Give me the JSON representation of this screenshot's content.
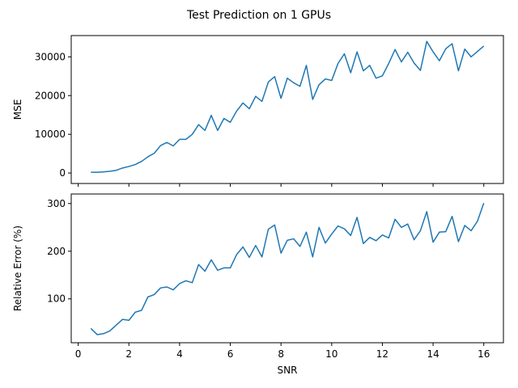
{
  "title": "Test Prediction on 1 GPUs",
  "chart_data": [
    {
      "type": "line",
      "ylabel": "MSE",
      "color": "#1f77b4",
      "xticklabels": false,
      "x": [
        0.5,
        0.75,
        1,
        1.25,
        1.5,
        1.75,
        2,
        2.25,
        2.5,
        2.75,
        3,
        3.25,
        3.5,
        3.75,
        4,
        4.25,
        4.5,
        4.75,
        5,
        5.25,
        5.5,
        5.75,
        6,
        6.25,
        6.5,
        6.75,
        7,
        7.25,
        7.5,
        7.75,
        8,
        8.25,
        8.5,
        8.75,
        9,
        9.25,
        9.5,
        9.75,
        10,
        10.25,
        10.5,
        10.75,
        11,
        11.25,
        11.5,
        11.75,
        12,
        12.25,
        12.5,
        12.75,
        13,
        13.25,
        13.5,
        13.75,
        14,
        14.25,
        14.5,
        14.75,
        15,
        15.25,
        15.5,
        15.75,
        16
      ],
      "values": [
        200,
        200,
        300,
        450,
        700,
        1300,
        1700,
        2200,
        3000,
        4200,
        5100,
        7100,
        7900,
        7000,
        8700,
        8700,
        10000,
        12500,
        11000,
        14900,
        11000,
        14100,
        13100,
        16000,
        18100,
        16600,
        19800,
        18500,
        23500,
        24900,
        19300,
        24500,
        23300,
        22400,
        27800,
        19000,
        22800,
        24300,
        23900,
        28300,
        30800,
        25900,
        31300,
        26400,
        27800,
        24500,
        25100,
        28300,
        31900,
        28700,
        31200,
        28400,
        26500,
        34000,
        31300,
        29000,
        32100,
        33400,
        26400,
        32000,
        30000,
        31400,
        32800
      ],
      "xlim": [
        -0.275,
        16.775
      ],
      "xticks": [
        0,
        2,
        4,
        6,
        8,
        10,
        12,
        14,
        16
      ],
      "ylim": [
        -2700,
        35500
      ],
      "yticks": [
        0,
        10000,
        20000,
        30000
      ]
    },
    {
      "type": "line",
      "xlabel": "SNR",
      "ylabel": "Relative Error (%)",
      "color": "#1f77b4",
      "xticklabels": true,
      "x": [
        0.5,
        0.75,
        1,
        1.25,
        1.5,
        1.75,
        2,
        2.25,
        2.5,
        2.75,
        3,
        3.25,
        3.5,
        3.75,
        4,
        4.25,
        4.5,
        4.75,
        5,
        5.25,
        5.5,
        5.75,
        6,
        6.25,
        6.5,
        6.75,
        7,
        7.25,
        7.5,
        7.75,
        8,
        8.25,
        8.5,
        8.75,
        9,
        9.25,
        9.5,
        9.75,
        10,
        10.25,
        10.5,
        10.75,
        11,
        11.25,
        11.5,
        11.75,
        12,
        12.25,
        12.5,
        12.75,
        13,
        13.25,
        13.5,
        13.75,
        14,
        14.25,
        14.5,
        14.75,
        15,
        15.25,
        15.5,
        15.75,
        16
      ],
      "values": [
        38,
        25,
        27,
        33,
        45,
        57,
        55,
        72,
        76,
        104,
        109,
        123,
        125,
        119,
        132,
        138,
        134,
        172,
        158,
        182,
        160,
        165,
        165,
        193,
        209,
        187,
        212,
        188,
        246,
        255,
        196,
        223,
        226,
        210,
        240,
        188,
        250,
        217,
        236,
        253,
        247,
        233,
        271,
        216,
        229,
        222,
        234,
        228,
        267,
        250,
        257,
        224,
        243,
        283,
        219,
        240,
        241,
        273,
        220,
        254,
        243,
        263,
        301
      ],
      "xlim": [
        -0.275,
        16.775
      ],
      "xticks": [
        0,
        2,
        4,
        6,
        8,
        10,
        12,
        14,
        16
      ],
      "ylim": [
        8,
        320
      ],
      "yticks": [
        100,
        200,
        300
      ]
    }
  ]
}
